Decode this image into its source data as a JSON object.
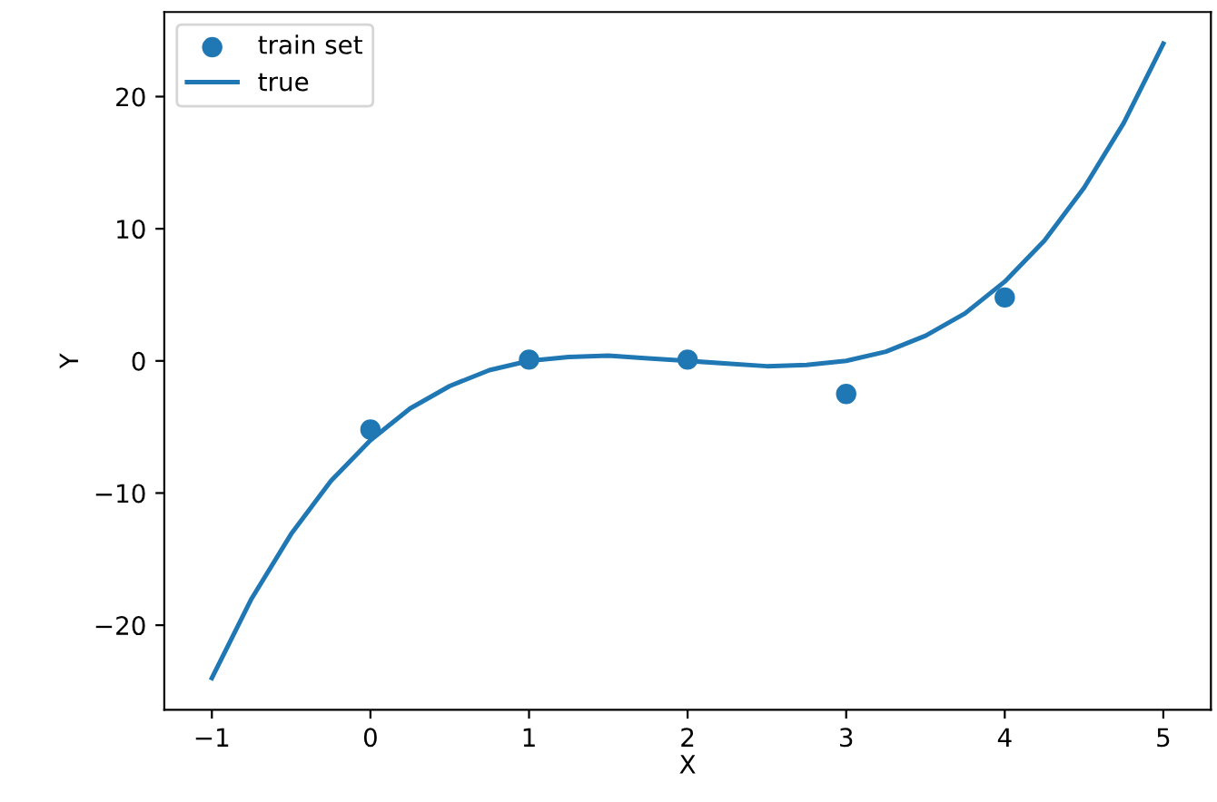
{
  "chart_data": {
    "type": "scatter",
    "xlabel": "X",
    "ylabel": "Y",
    "xlim": [
      -1.3,
      5.3
    ],
    "ylim": [
      -26.4,
      26.4
    ],
    "xticks": [
      -1,
      0,
      1,
      2,
      3,
      4,
      5
    ],
    "yticks": [
      -20,
      -10,
      0,
      10,
      20
    ],
    "grid": false,
    "legend": "top left",
    "series": [
      {
        "name": "train set",
        "marker": "circle",
        "color": "#1f77b4",
        "x": [
          0,
          1,
          2,
          3,
          4
        ],
        "values": [
          -5.2,
          0.1,
          0.1,
          -2.5,
          4.8
        ]
      },
      {
        "name": "true",
        "type": "line",
        "marker": "none",
        "line_style": "solid",
        "color": "#1f77b4",
        "x": [
          -1,
          -0.75,
          -0.5,
          -0.25,
          0,
          0.25,
          0.5,
          0.75,
          1,
          1.25,
          1.5,
          1.75,
          2,
          2.25,
          2.5,
          2.75,
          3,
          3.25,
          3.5,
          3.75,
          4,
          4.25,
          4.5,
          4.75,
          5
        ],
        "values": [
          -24,
          -18.0,
          -13.1,
          -9.1,
          -6.0,
          -3.6,
          -1.9,
          -0.7,
          0,
          0.3,
          0.4,
          0.2,
          0,
          -0.2,
          -0.4,
          -0.3,
          0,
          0.7,
          1.9,
          3.6,
          6.0,
          9.1,
          13.1,
          18.0,
          24
        ]
      }
    ]
  }
}
